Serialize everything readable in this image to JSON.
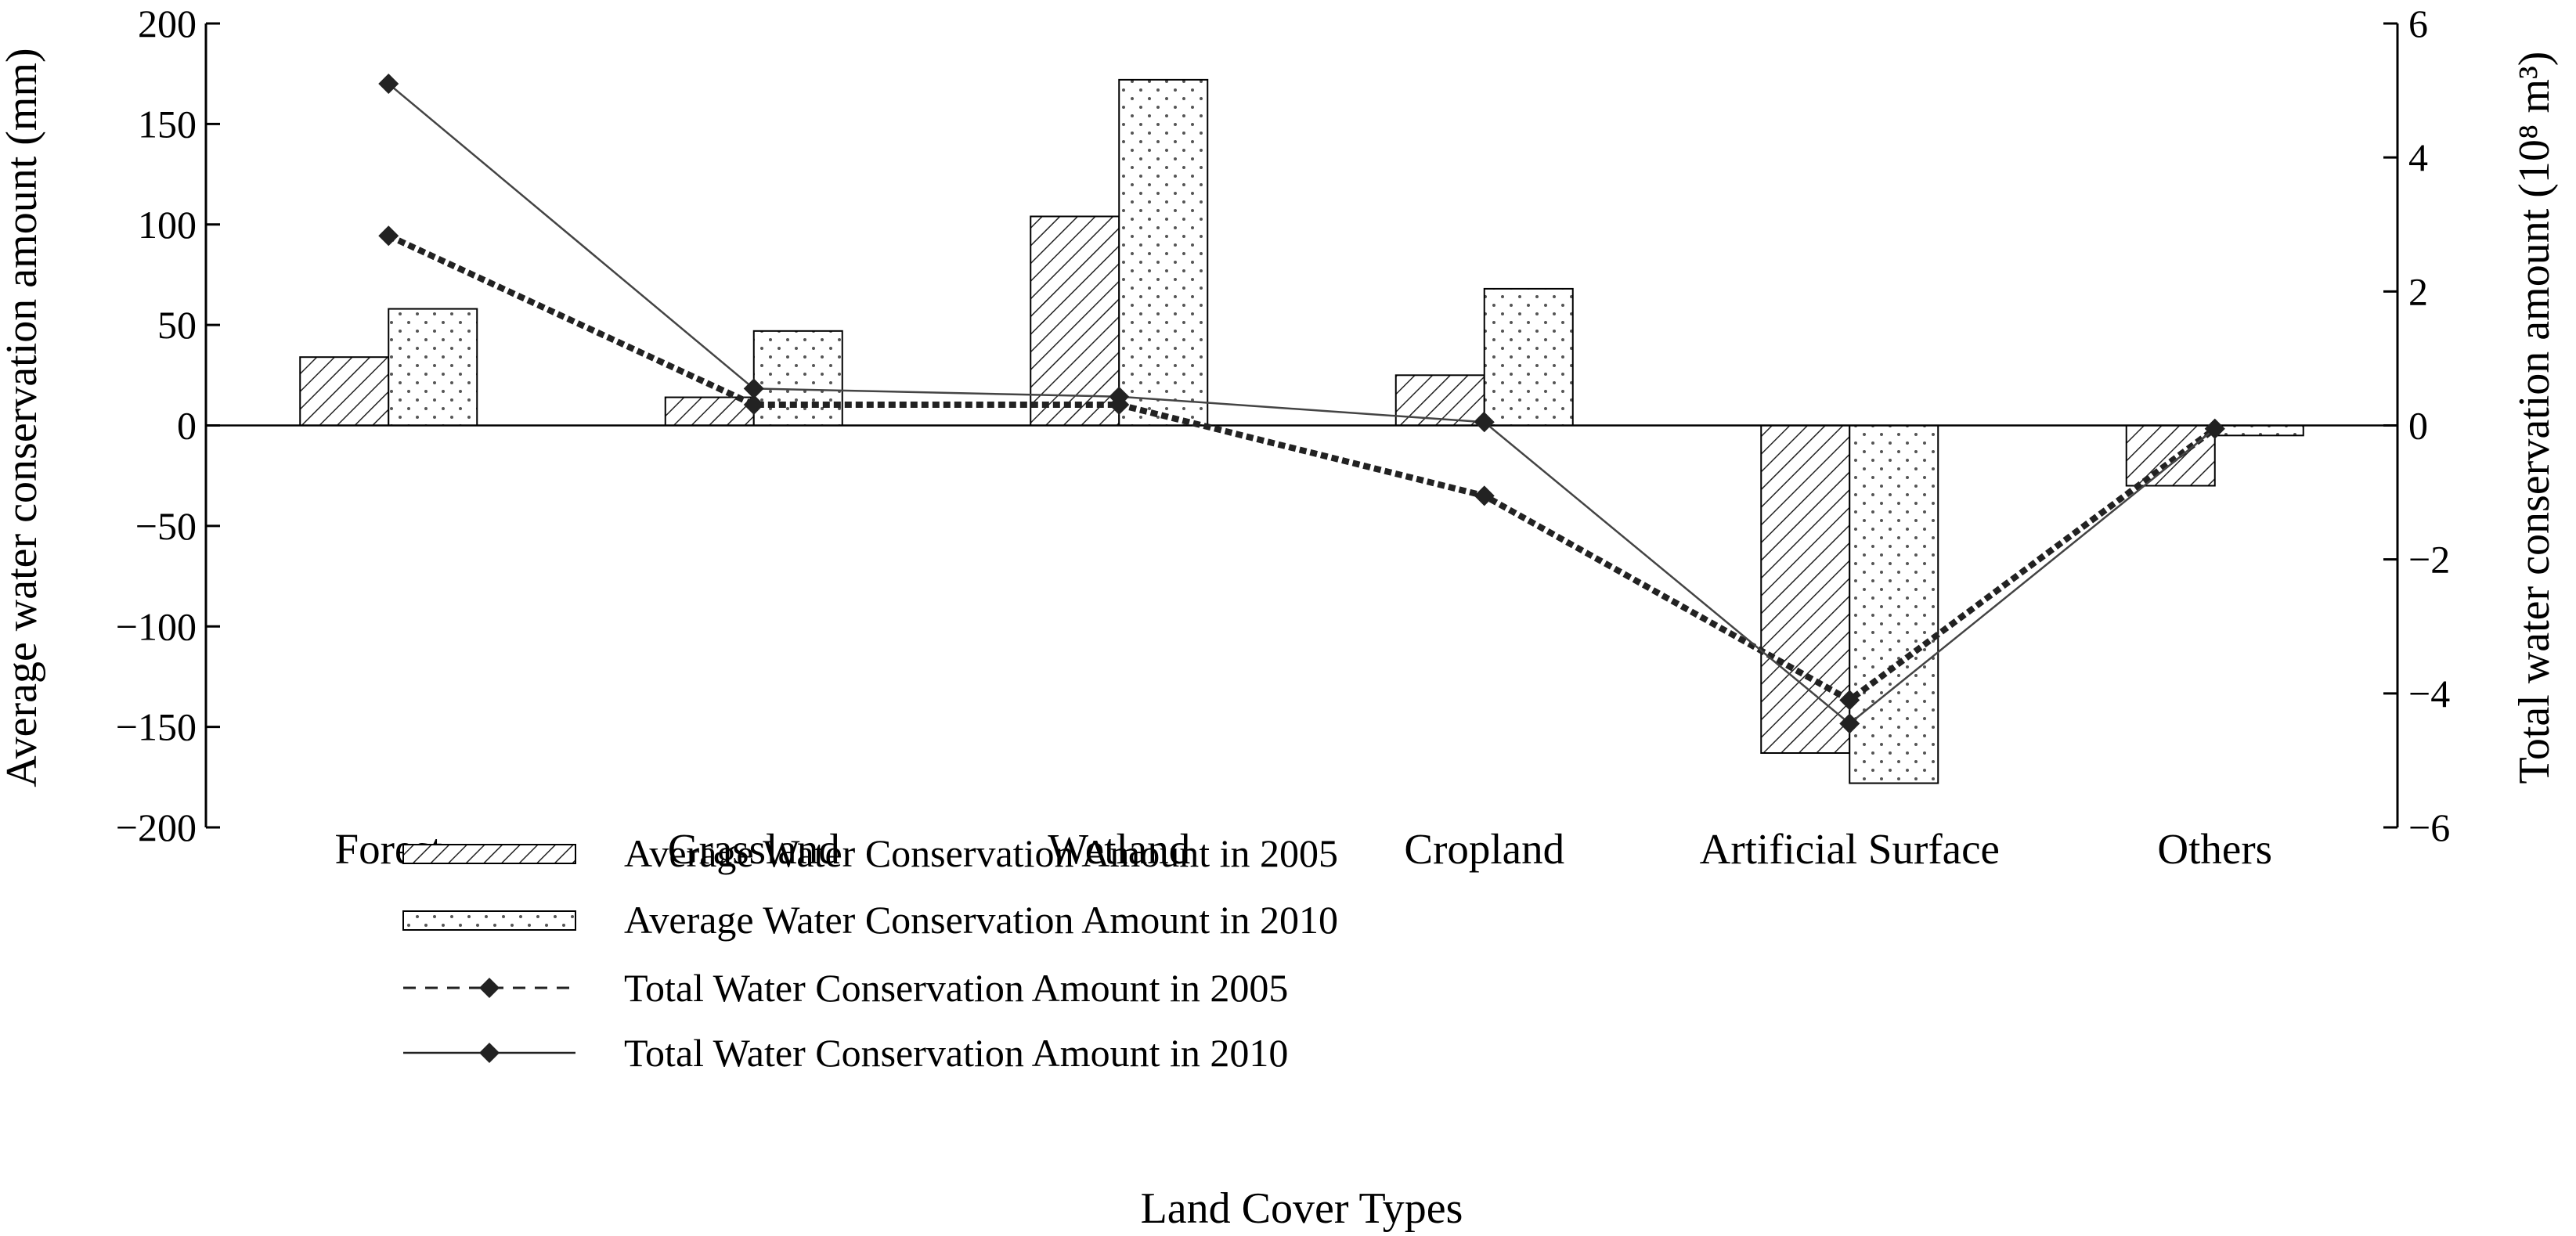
{
  "chart_data": {
    "type": "bar",
    "xlabel": "Land Cover Types",
    "ylabel": "Average water conservation amount (mm)",
    "y2label": "Total water conservation amount (10⁸ m³)",
    "ylim": [
      -200,
      200
    ],
    "y2lim": [
      -6,
      6
    ],
    "yticks": [
      200,
      150,
      100,
      50,
      0,
      -50,
      -100,
      -150,
      -200
    ],
    "yticks_text": [
      "200",
      "150",
      "100",
      "50",
      "0",
      "−50",
      "−100",
      "−150",
      "−200"
    ],
    "y2ticks": [
      6,
      4,
      2,
      0,
      -2,
      -4,
      -6
    ],
    "y2ticks_text": [
      "6",
      "4",
      "2",
      "0",
      "−2",
      "−4",
      "−6"
    ],
    "categories": [
      "Forest",
      "Grassland",
      "Wetland",
      "Cropland",
      "Artificial Surface",
      "Others"
    ],
    "series": [
      {
        "name": "Average Water Conservation Amount in 2005",
        "type": "bar",
        "axis": "left",
        "pattern": "hatch",
        "values": [
          34,
          14,
          104,
          25,
          -163,
          -30
        ]
      },
      {
        "name": "Average Water Conservation Amount in 2010",
        "type": "bar",
        "axis": "left",
        "pattern": "dots",
        "values": [
          58,
          47,
          172,
          68,
          -178,
          -5
        ]
      },
      {
        "name": "Total Water Conservation Amount in 2005",
        "type": "line",
        "axis": "right",
        "style": "dashed",
        "values": [
          2.83,
          0.31,
          0.31,
          -1.05,
          -4.1,
          -0.05
        ]
      },
      {
        "name": "Total Water Conservation Amount in 2010",
        "type": "line",
        "axis": "right",
        "style": "solid",
        "values": [
          5.1,
          0.55,
          0.43,
          0.05,
          -4.45,
          -0.05
        ]
      }
    ],
    "legend_position": "lower-left",
    "grid": false
  }
}
